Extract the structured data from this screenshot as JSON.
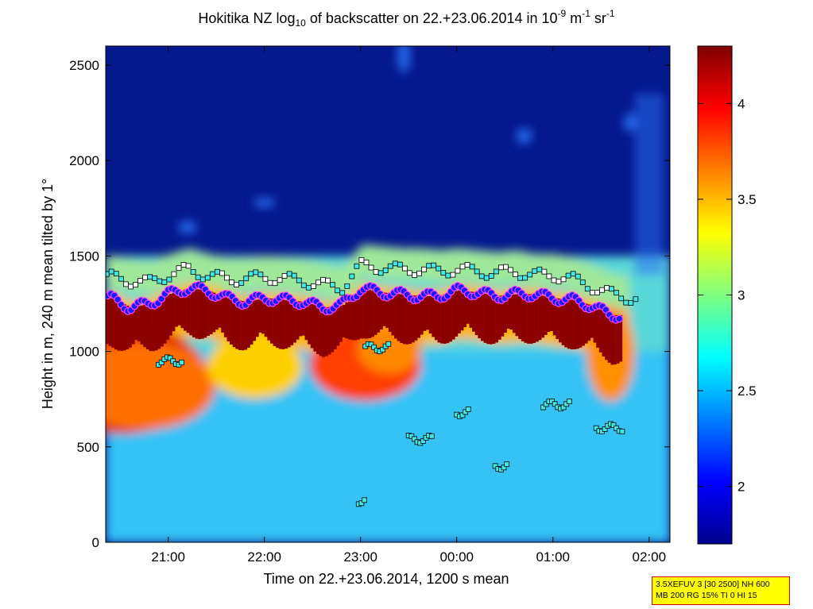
{
  "chart_data": {
    "type": "heatmap",
    "title": {
      "pre": "Hokitika NZ log",
      "sub": "10",
      "mid": " of backscatter on 22.+23.06.2014 in 10",
      "sup1": "-9",
      "unit1": " m",
      "sup2": "-1",
      "unit2": " sr",
      "sup3": "-1"
    },
    "xlabel": "Time on 22.+23.06.2014, 1200 s mean",
    "ylabel": "Height in m, 240 m mean tilted by 1°",
    "xlim": [
      "20:21",
      "02:13"
    ],
    "x_ticks": [
      "21:00",
      "22:00",
      "23:00",
      "00:00",
      "01:00",
      "02:00"
    ],
    "ylim": [
      0,
      2600
    ],
    "y_ticks": [
      0,
      500,
      1000,
      1500,
      2000,
      2500
    ],
    "colorbar": {
      "range": [
        1.7,
        4.3
      ],
      "ticks": [
        2,
        2.5,
        3,
        3.5,
        4
      ],
      "colormap": "jet"
    },
    "cloud_base_series": {
      "name": "cloud base (white squares)",
      "t_hours": [
        20.4,
        20.6,
        20.8,
        21.0,
        21.2,
        21.4,
        21.6,
        21.8,
        22.0,
        22.2,
        22.4,
        22.6,
        22.8,
        23.0,
        23.2,
        23.4,
        23.6,
        23.8,
        24.0,
        24.2,
        24.4,
        24.6,
        24.8,
        25.0,
        25.2,
        25.4,
        25.6,
        25.8
      ],
      "height_m": [
        1390,
        1370,
        1360,
        1400,
        1430,
        1400,
        1380,
        1380,
        1390,
        1380,
        1370,
        1350,
        1330,
        1450,
        1440,
        1430,
        1430,
        1420,
        1430,
        1420,
        1410,
        1420,
        1400,
        1400,
        1380,
        1340,
        1300,
        1280
      ]
    },
    "mixing_layer_series": {
      "name": "mixing layer (blue dots)",
      "t_hours": [
        20.4,
        20.6,
        20.8,
        21.0,
        21.2,
        21.4,
        21.6,
        21.8,
        22.0,
        22.2,
        22.4,
        22.6,
        22.8,
        23.0,
        23.2,
        23.4,
        23.6,
        23.8,
        24.0,
        24.2,
        24.4,
        24.6,
        24.8,
        25.0,
        25.2,
        25.4,
        25.6
      ],
      "height_m": [
        1280,
        1230,
        1250,
        1300,
        1330,
        1320,
        1280,
        1260,
        1280,
        1270,
        1260,
        1230,
        1240,
        1330,
        1310,
        1300,
        1290,
        1290,
        1320,
        1310,
        1290,
        1300,
        1300,
        1280,
        1270,
        1240,
        1190
      ]
    },
    "low_cloud_segments": [
      {
        "t": [
          20.9,
          21.15
        ],
        "h": 950
      },
      {
        "t": [
          23.05,
          23.3
        ],
        "h": 1020
      },
      {
        "t": [
          23.5,
          23.75
        ],
        "h": 540
      },
      {
        "t": [
          24.0,
          24.15
        ],
        "h": 680
      },
      {
        "t": [
          24.4,
          24.55
        ],
        "h": 400
      },
      {
        "t": [
          24.9,
          25.2
        ],
        "h": 720
      },
      {
        "t": [
          25.45,
          25.75
        ],
        "h": 600
      },
      {
        "t": [
          22.98,
          23.05
        ],
        "h": 220
      }
    ],
    "legend": "none",
    "grid": false
  },
  "info_box": {
    "line1": "3.5XEFUV 3 [30 2500] NH 600",
    "line2": "MB 200 RG 15% TI 0 HI 15"
  }
}
